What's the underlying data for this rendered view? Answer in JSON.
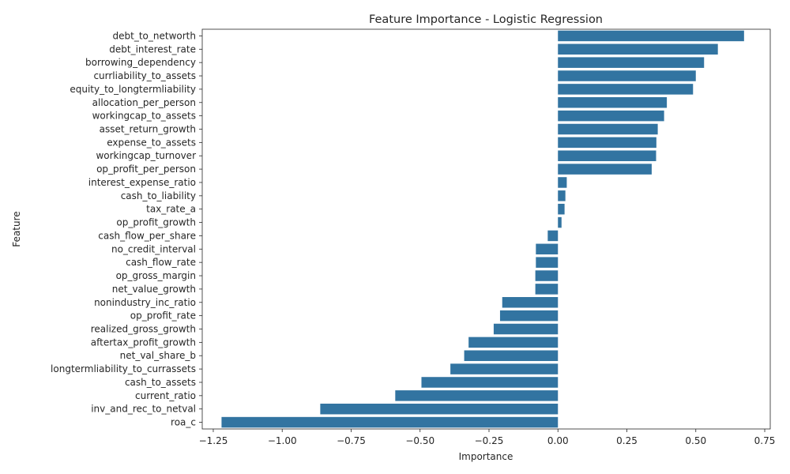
{
  "chart_data": {
    "type": "bar",
    "orientation": "horizontal",
    "title": "Feature Importance - Logistic Regression",
    "xlabel": "Importance",
    "ylabel": "Feature",
    "xlim": [
      -1.29,
      0.77
    ],
    "xticks": [
      -1.25,
      -1.0,
      -0.75,
      -0.5,
      -0.25,
      0.0,
      0.25,
      0.5,
      0.75
    ],
    "xtick_labels": [
      "−1.25",
      "−1.00",
      "−0.75",
      "−0.50",
      "−0.25",
      "0.00",
      "0.25",
      "0.50",
      "0.75"
    ],
    "bar_color": "#3274a1",
    "grid": false,
    "categories": [
      "debt_to_networth",
      "debt_interest_rate",
      "borrowing_dependency",
      "currliability_to_assets",
      "equity_to_longtermliability",
      "allocation_per_person",
      "workingcap_to_assets",
      "asset_return_growth",
      "expense_to_assets",
      "workingcap_turnover",
      "op_profit_per_person",
      "interest_expense_ratio",
      "cash_to_liability",
      "tax_rate_a",
      "op_profit_growth",
      "cash_flow_per_share",
      "no_credit_interval",
      "cash_flow_rate",
      "op_gross_margin",
      "net_value_growth",
      "nonindustry_inc_ratio",
      "op_profit_rate",
      "realized_gross_growth",
      "aftertax_profit_growth",
      "net_val_share_b",
      "longtermliability_to_currassets",
      "cash_to_assets",
      "current_ratio",
      "inv_and_rec_to_netval",
      "roa_c"
    ],
    "values": [
      0.675,
      0.58,
      0.53,
      0.5,
      0.49,
      0.395,
      0.385,
      0.362,
      0.357,
      0.356,
      0.34,
      0.032,
      0.027,
      0.024,
      0.013,
      -0.037,
      -0.08,
      -0.08,
      -0.082,
      -0.082,
      -0.202,
      -0.21,
      -0.233,
      -0.324,
      -0.34,
      -0.39,
      -0.495,
      -0.59,
      -0.862,
      -1.22
    ]
  }
}
